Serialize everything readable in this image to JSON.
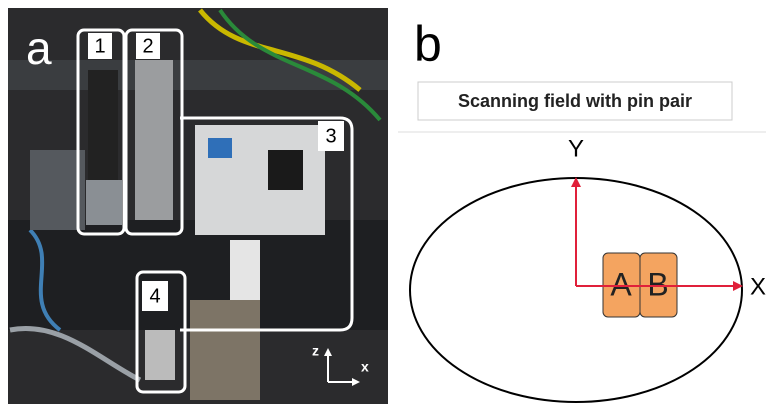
{
  "panel_a": {
    "label": "a",
    "regions": [
      "1",
      "2",
      "3",
      "4"
    ],
    "axes": {
      "vertical": "z",
      "horizontal": "x"
    }
  },
  "panel_b": {
    "label": "b",
    "title": "Scanning field with pin pair",
    "axes": {
      "vertical": "Y",
      "horizontal": "X"
    },
    "pins": [
      "A",
      "B"
    ]
  }
}
